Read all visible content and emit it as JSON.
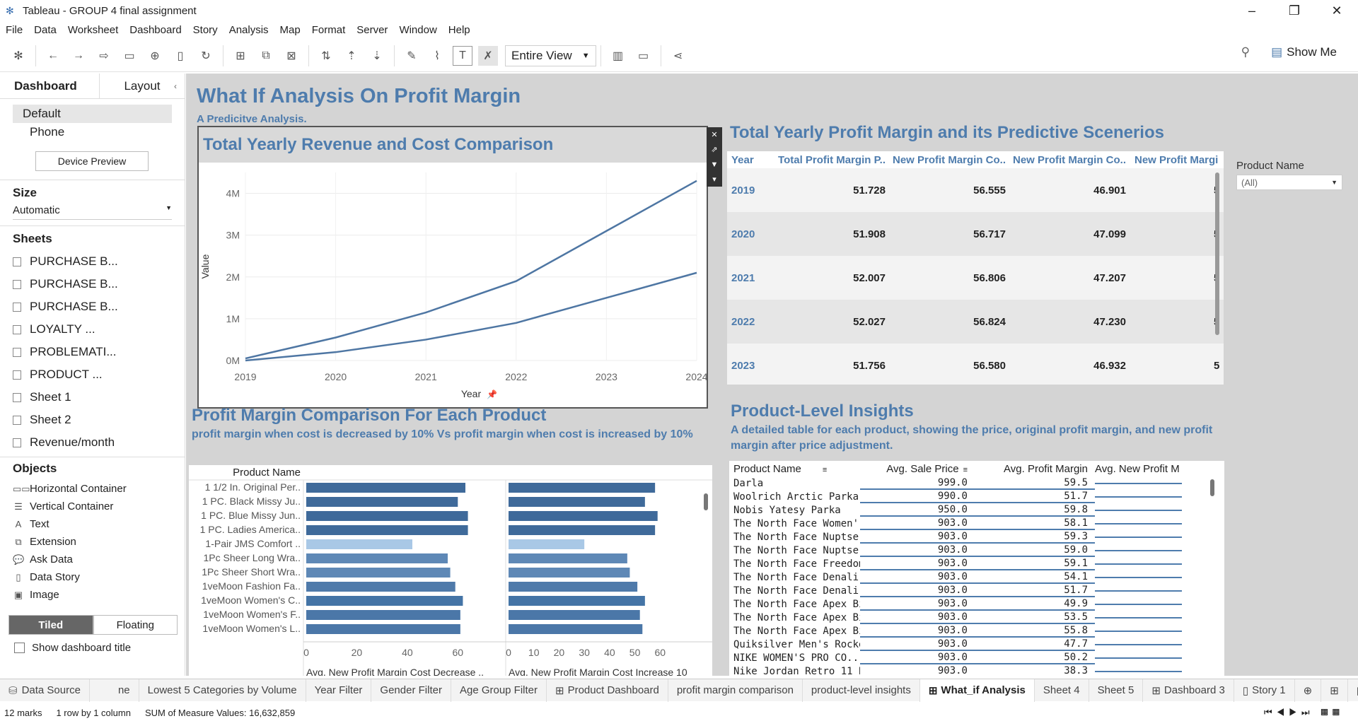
{
  "window": {
    "title": "Tableau - GROUP 4 final assignment"
  },
  "menu": [
    "File",
    "Data",
    "Worksheet",
    "Dashboard",
    "Story",
    "Analysis",
    "Map",
    "Format",
    "Server",
    "Window",
    "Help"
  ],
  "toolbar": {
    "view_dropdown": "Entire View",
    "show_me": "Show Me"
  },
  "left_panel": {
    "tabs": [
      "Dashboard",
      "Layout"
    ],
    "device_options": [
      "Default",
      "Phone"
    ],
    "device_preview": "Device Preview",
    "size_title": "Size",
    "size_value": "Automatic",
    "sheets_title": "Sheets",
    "sheets": [
      "PURCHASE B...",
      "PURCHASE B...",
      "PURCHASE B...",
      "LOYALTY ...",
      "PROBLEMATI...",
      "PRODUCT ...",
      "Sheet 1",
      "Sheet 2",
      "Revenue/month"
    ],
    "objects_title": "Objects",
    "objects": [
      "Horizontal Container",
      "Vertical Container",
      "Text",
      "Extension",
      "Ask Data",
      "Data Story",
      "Image"
    ],
    "tiled": "Tiled",
    "floating": "Floating",
    "show_title": "Show dashboard title"
  },
  "dashboard": {
    "title": "What If Analysis On Profit Margin",
    "subtitle": "A Predicitve Analysis."
  },
  "line_chart": {
    "title": "Total Yearly Revenue and Cost Comparison",
    "ylabel": "Value",
    "xlabel": "Year",
    "y_ticks": [
      "4M",
      "3M",
      "2M",
      "1M",
      "0M"
    ],
    "x_ticks": [
      "2019",
      "2020",
      "2021",
      "2022",
      "2023",
      "2024"
    ]
  },
  "chart_data": {
    "type": "line",
    "x": [
      "2019",
      "2020",
      "2021",
      "2022",
      "2023",
      "2024"
    ],
    "ylim": [
      0,
      4500000
    ],
    "series": [
      {
        "values": [
          50000,
          550000,
          1150000,
          1900000,
          3100000,
          4300000
        ]
      },
      {
        "values": [
          0,
          200000,
          500000,
          900000,
          1500000,
          2100000
        ]
      }
    ]
  },
  "profit_margin_table": {
    "title": "Total Yearly Profit Margin and its Predictive Scenerios",
    "headers": [
      "Year",
      "Total Profit Margin P..",
      "New Profit Margin Co..",
      "New Profit Margin Co..",
      "New Profit Margi"
    ],
    "rows": [
      {
        "year": "2019",
        "v1": "51.728",
        "v2": "56.555",
        "v3": "46.901",
        "v4": "5"
      },
      {
        "year": "2020",
        "v1": "51.908",
        "v2": "56.717",
        "v3": "47.099",
        "v4": "5"
      },
      {
        "year": "2021",
        "v1": "52.007",
        "v2": "56.806",
        "v3": "47.207",
        "v4": "5"
      },
      {
        "year": "2022",
        "v1": "52.027",
        "v2": "56.824",
        "v3": "47.230",
        "v4": "5"
      },
      {
        "year": "2023",
        "v1": "51.756",
        "v2": "56.580",
        "v3": "46.932",
        "v4": "5"
      }
    ]
  },
  "filter": {
    "label": "Product Name",
    "value": "(All)"
  },
  "bar_chart": {
    "title": "Profit Margin Comparison For Each Product",
    "subtitle": "profit margin when cost is decreased by 10% Vs profit margin when cost is increased by 10%",
    "row_header": "Product Name",
    "products": [
      "1 1/2 In. Original Per..",
      "1 PC. Black Missy Ju..",
      "1 PC. Blue Missy Jun..",
      "1 PC. Ladies America..",
      "1-Pair JMS Comfort ..",
      "1Pc Sheer Long Wra..",
      "1Pc Sheer Short Wra..",
      "1veMoon Fashion Fa..",
      "1veMoon Women's C..",
      "1veMoon Women's F..",
      "1veMoon Women's L.."
    ],
    "left_axis_label": "Avg. New Profit Margin Cost Decrease ..",
    "right_axis_label": "Avg. New Profit Margin Cost Increase 10",
    "left_ticks": [
      "0",
      "20",
      "40",
      "60"
    ],
    "right_ticks": [
      "0",
      "10",
      "20",
      "30",
      "40",
      "50",
      "60"
    ],
    "left_values": [
      63,
      60,
      64,
      64,
      42,
      56,
      57,
      59,
      62,
      61,
      61
    ],
    "right_values": [
      58,
      54,
      59,
      58,
      30,
      47,
      48,
      51,
      54,
      52,
      53
    ],
    "colors": [
      "#3f6a9a",
      "#3f6a9a",
      "#3f6a9a",
      "#3f6a9a",
      "#a9c8e6",
      "#5e88b6",
      "#5e88b6",
      "#4f7aaa",
      "#4474a6",
      "#4b77a8",
      "#4b77a8"
    ]
  },
  "product_table": {
    "title": "Product-Level Insights",
    "subtitle": "A detailed table for each product, showing the price, original profit margin, and new profit margin after price adjustment.",
    "headers": [
      "Product Name",
      "Avg. Sale Price",
      "Avg. Profit Margin",
      "Avg. New Profit M"
    ],
    "rows": [
      [
        "Darla",
        "999.0",
        "59.5"
      ],
      [
        "Woolrich Arctic Parka DF",
        "990.0",
        "51.7"
      ],
      [
        "Nobis Yatesy Parka",
        "950.0",
        "59.8"
      ],
      [
        "The North Face Women'..",
        "903.0",
        "58.1"
      ],
      [
        "The North Face Nuptse 2..",
        "903.0",
        "59.3"
      ],
      [
        "The North Face Nuptse 2..",
        "903.0",
        "59.0"
      ],
      [
        "The North Face Freedom..",
        "903.0",
        "59.1"
      ],
      [
        "The North Face Denali D..",
        "903.0",
        "54.1"
      ],
      [
        "The North Face Denali D..",
        "903.0",
        "51.7"
      ],
      [
        "The North Face Apex Bio..",
        "903.0",
        "49.9"
      ],
      [
        "The North Face Apex Bio..",
        "903.0",
        "53.5"
      ],
      [
        "The North Face Apex Bio..",
        "903.0",
        "55.8"
      ],
      [
        "Quiksilver Men's Rockef..",
        "903.0",
        "47.7"
      ],
      [
        "NIKE WOMEN'S PRO CO..",
        "903.0",
        "50.2"
      ],
      [
        "Nike Jordan Retro 11 Br..",
        "903.0",
        "38.3"
      ]
    ]
  },
  "bottom_tabs": [
    "Data Source",
    "ne",
    "Lowest 5 Categories by Volume",
    "Year Filter",
    "Gender Filter",
    "Age Group Filter",
    "Product Dashboard",
    "profit margin comparison",
    "product-level insights",
    "What_if Analysis",
    "Sheet 4",
    "Sheet 5",
    "Dashboard 3",
    "Story 1"
  ],
  "status": {
    "marks": "12 marks",
    "dims": "1 row by 1 column",
    "sum": "SUM of Measure Values: 16,632,859"
  }
}
